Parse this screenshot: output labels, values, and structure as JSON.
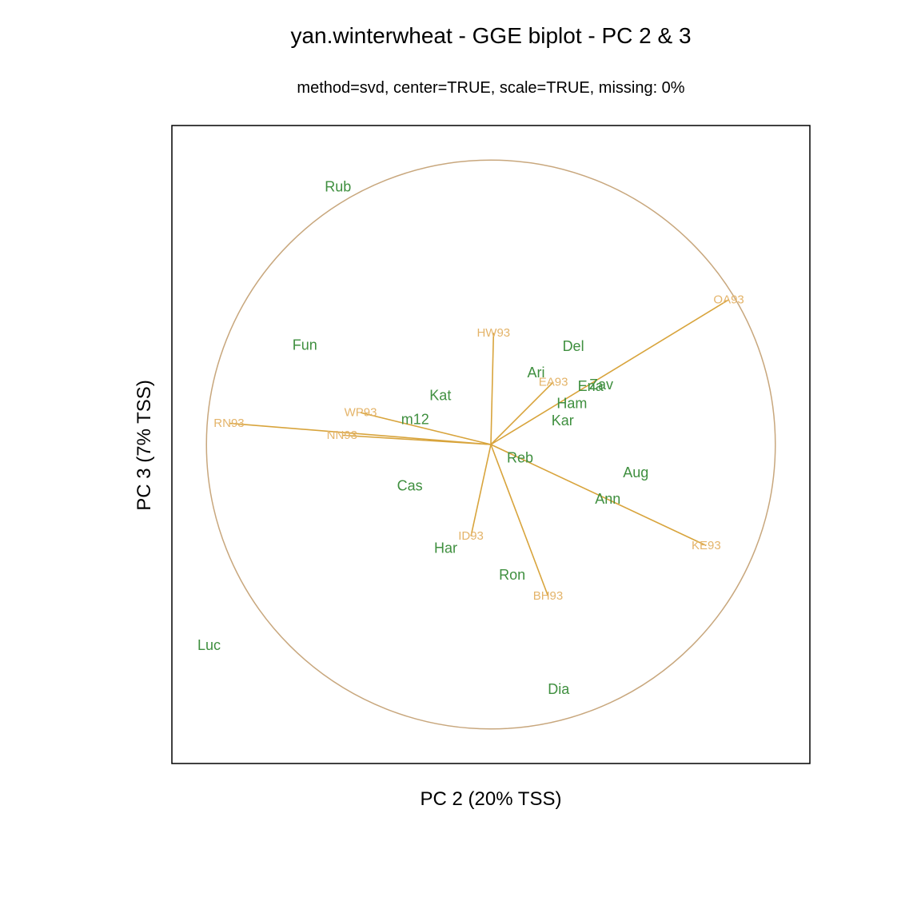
{
  "chart_data": {
    "type": "scatter",
    "title": "yan.winterwheat - GGE biplot - PC 2 & 3",
    "subtitle": "method=svd, center=TRUE, scale=TRUE, missing: 0%",
    "xlabel": "PC 2 (20% TSS)",
    "ylabel": "PC 3 (7% TSS)",
    "xlim": [
      -2.4,
      2.4
    ],
    "ylim": [
      -2.4,
      2.4
    ],
    "grid": false,
    "axes_ticks": false,
    "colors": {
      "genotype": "#3f8f3f",
      "environment_label": "#e4b46a",
      "environment_vector": "#d8a43c",
      "circle": "#c8a77d",
      "frame": "#000000"
    },
    "circle_radius": 2.14,
    "genotypes": [
      {
        "label": "Rub",
        "x": -1.15,
        "y": 1.94
      },
      {
        "label": "Fun",
        "x": -1.4,
        "y": 0.75
      },
      {
        "label": "Del",
        "x": 0.62,
        "y": 0.74
      },
      {
        "label": "Ari",
        "x": 0.34,
        "y": 0.54
      },
      {
        "label": "Ena",
        "x": 0.75,
        "y": 0.44
      },
      {
        "label": "Zav",
        "x": 0.83,
        "y": 0.45
      },
      {
        "label": "Ham",
        "x": 0.61,
        "y": 0.31
      },
      {
        "label": "Kar",
        "x": 0.54,
        "y": 0.18
      },
      {
        "label": "Kat",
        "x": -0.38,
        "y": 0.37
      },
      {
        "label": "m12",
        "x": -0.57,
        "y": 0.19
      },
      {
        "label": "Reb",
        "x": 0.22,
        "y": -0.1
      },
      {
        "label": "Cas",
        "x": -0.61,
        "y": -0.31
      },
      {
        "label": "Aug",
        "x": 1.09,
        "y": -0.21
      },
      {
        "label": "Ann",
        "x": 0.88,
        "y": -0.41
      },
      {
        "label": "Har",
        "x": -0.34,
        "y": -0.78
      },
      {
        "label": "Ron",
        "x": 0.16,
        "y": -0.98
      },
      {
        "label": "Luc",
        "x": -2.12,
        "y": -1.51
      },
      {
        "label": "Dia",
        "x": 0.51,
        "y": -1.84
      }
    ],
    "environments": [
      {
        "label": "OA93",
        "x": 1.79,
        "y": 1.09
      },
      {
        "label": "HW93",
        "x": 0.02,
        "y": 0.84
      },
      {
        "label": "EA93",
        "x": 0.47,
        "y": 0.47
      },
      {
        "label": "WP93",
        "x": -0.98,
        "y": 0.24
      },
      {
        "label": "RN93",
        "x": -1.97,
        "y": 0.16
      },
      {
        "label": "NN93",
        "x": -1.12,
        "y": 0.07
      },
      {
        "label": "ID93",
        "x": -0.15,
        "y": -0.69
      },
      {
        "label": "BH93",
        "x": 0.43,
        "y": -1.14
      },
      {
        "label": "KE93",
        "x": 1.62,
        "y": -0.76
      }
    ]
  }
}
